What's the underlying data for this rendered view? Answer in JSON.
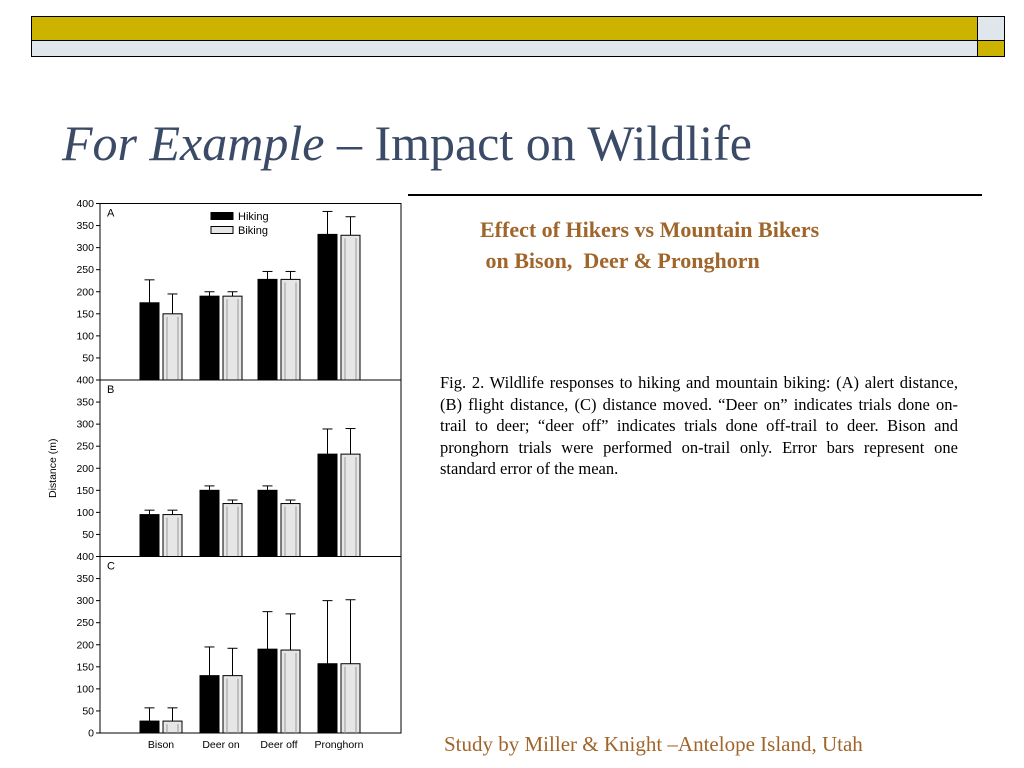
{
  "slide": {
    "title_italic": "For Example",
    "title_dash": " – ",
    "title_rest": "Impact on Wildlife",
    "subtitle_line1": "Effect of Hikers vs Mountain Bikers",
    "subtitle_line2": " on Bison,  Deer & Pronghorn",
    "caption": "Fig. 2.    Wildlife responses to hiking and mountain biking: (A) alert distance, (B) flight distance, (C) distance moved. “Deer on” indicates trials done on-trail to deer; “deer off” indicates trials done off-trail to deer. Bison and pronghorn trials were performed on-trail only. Error bars represent one standard error of the mean.",
    "credit": "Study by Miller & Knight –Antelope Island, Utah"
  },
  "colors": {
    "gold": "#cbb300",
    "title": "#3b4a66",
    "accent": "#a0652b",
    "hiking": "#000000",
    "biking": "#e6e6e6"
  },
  "chart_data": {
    "type": "bar",
    "categories": [
      "Bison",
      "Deer on",
      "Deer off",
      "Pronghorn"
    ],
    "ylabel": "Distance (m)",
    "ylim": [
      0,
      400
    ],
    "yticks": [
      0,
      50,
      100,
      150,
      200,
      250,
      300,
      350,
      400
    ],
    "legend": {
      "position": "top",
      "entries": [
        "Hiking",
        "Biking"
      ]
    },
    "panels": [
      {
        "label": "A",
        "series": [
          {
            "name": "Hiking",
            "values": [
              175,
              190,
              228,
              330
            ],
            "errors": [
              52,
              10,
              18,
              52
            ]
          },
          {
            "name": "Biking",
            "values": [
              150,
              190,
              228,
              328
            ],
            "errors": [
              45,
              10,
              18,
              42
            ]
          }
        ]
      },
      {
        "label": "B",
        "series": [
          {
            "name": "Hiking",
            "values": [
              95,
              150,
              150,
              232
            ],
            "errors": [
              10,
              10,
              10,
              57
            ]
          },
          {
            "name": "Biking",
            "values": [
              95,
              120,
              120,
              232
            ],
            "errors": [
              10,
              8,
              8,
              58
            ]
          }
        ]
      },
      {
        "label": "C",
        "series": [
          {
            "name": "Hiking",
            "values": [
              27,
              130,
              190,
              157
            ],
            "errors": [
              30,
              65,
              85,
              143
            ]
          },
          {
            "name": "Biking",
            "values": [
              27,
              130,
              188,
              157
            ],
            "errors": [
              30,
              62,
              82,
              145
            ]
          }
        ]
      }
    ]
  }
}
